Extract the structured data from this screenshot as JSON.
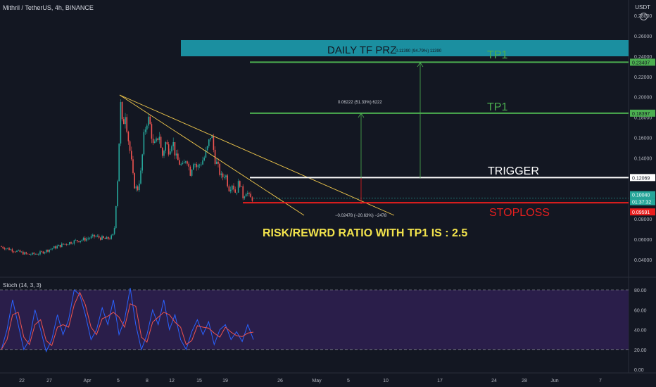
{
  "header": {
    "symbol": "Mithril / TetherUS, 4h, BINANCE",
    "currency": "USDT",
    "settings_icon": "gear-icon"
  },
  "stoch_label": "Stoch (14, 3, 3)",
  "colors": {
    "background": "#131722",
    "up": "#26a69a",
    "down": "#ef5350",
    "prz_box": "#1b8fa0",
    "tp_line": "#4caf50",
    "trigger_line": "#ffffff",
    "stoploss_line": "#e91e1e",
    "trendline": "#f2c94c",
    "stoch_k": "#2962ff",
    "stoch_d": "#ef5350",
    "stoch_band": "#2a1e4a"
  },
  "annotations": {
    "prz_title": "DAILY TF PRZ",
    "prz_measure": "0.11390 (94.79%) 11390",
    "tp1_upper": "TP1",
    "tp1_lower": "TP1",
    "trigger": "TRIGGER",
    "stoploss": "STOPLOSS",
    "measure_mid": "0.06222 (51.33%) 6222",
    "measure_risk": "−0.02478 (−20.63%) −2478",
    "rr_text": "RISK/REWRD RATIO WITH TP1 IS : 2.5"
  },
  "price_tags": {
    "tp1_upper": "0.23407",
    "tp1_lower": "0.18397",
    "trigger": "0.12069",
    "current": "0.10040",
    "countdown": "01:37:32",
    "stoploss": "0.09591"
  },
  "chart_data": [
    {
      "type": "candlestick",
      "title": "Mithril / TetherUS, 4h, BINANCE",
      "ylim": [
        0.025,
        0.295
      ],
      "y_ticks": [
        "0.28000",
        "0.26000",
        "0.24000",
        "0.22000",
        "0.20000",
        "0.18000",
        "0.16000",
        "0.14000",
        "0.12000",
        "0.10000",
        "0.08000",
        "0.06000",
        "0.04000"
      ],
      "x_ticks": [
        "22",
        "27",
        "Apr",
        "5",
        "8",
        "12",
        "15",
        "19",
        "26",
        "May",
        "5",
        "10",
        "17",
        "24",
        "28",
        "Jun",
        "7"
      ],
      "close_path": [
        [
          0,
          0.053
        ],
        [
          20,
          0.049
        ],
        [
          40,
          0.045
        ],
        [
          55,
          0.046
        ],
        [
          70,
          0.05
        ],
        [
          90,
          0.055
        ],
        [
          105,
          0.058
        ],
        [
          120,
          0.06
        ],
        [
          135,
          0.063
        ],
        [
          150,
          0.06
        ],
        [
          158,
          0.062
        ],
        [
          162,
          0.065
        ],
        [
          168,
          0.13
        ],
        [
          171,
          0.195
        ],
        [
          174,
          0.17
        ],
        [
          178,
          0.185
        ],
        [
          182,
          0.16
        ],
        [
          186,
          0.14
        ],
        [
          190,
          0.115
        ],
        [
          195,
          0.108
        ],
        [
          200,
          0.125
        ],
        [
          205,
          0.165
        ],
        [
          210,
          0.18
        ],
        [
          214,
          0.17
        ],
        [
          218,
          0.15
        ],
        [
          222,
          0.155
        ],
        [
          226,
          0.165
        ],
        [
          230,
          0.14
        ],
        [
          235,
          0.155
        ],
        [
          240,
          0.148
        ],
        [
          245,
          0.158
        ],
        [
          250,
          0.14
        ],
        [
          255,
          0.135
        ],
        [
          260,
          0.13
        ],
        [
          265,
          0.142
        ],
        [
          270,
          0.125
        ],
        [
          275,
          0.138
        ],
        [
          280,
          0.13
        ],
        [
          285,
          0.135
        ],
        [
          290,
          0.14
        ],
        [
          295,
          0.15
        ],
        [
          300,
          0.165
        ],
        [
          305,
          0.14
        ],
        [
          310,
          0.13
        ],
        [
          315,
          0.12
        ],
        [
          320,
          0.125
        ],
        [
          325,
          0.11
        ],
        [
          330,
          0.115
        ],
        [
          335,
          0.105
        ],
        [
          340,
          0.118
        ],
        [
          345,
          0.102
        ],
        [
          350,
          0.108
        ],
        [
          355,
          0.1
        ],
        [
          359,
          0.1004
        ]
      ],
      "levels": [
        {
          "name": "TP1",
          "value": 0.23407
        },
        {
          "name": "TP1",
          "value": 0.18397
        },
        {
          "name": "TRIGGER",
          "value": 0.12069
        },
        {
          "name": "STOPLOSS",
          "value": 0.09591
        }
      ],
      "prz_zone": [
        0.24,
        0.262
      ]
    },
    {
      "type": "line",
      "title": "Stoch (14, 3, 3)",
      "ylim": [
        0,
        90
      ],
      "y_ticks": [
        "80.00",
        "60.00",
        "40.00",
        "20.00",
        "0.00"
      ],
      "bands": [
        20,
        80
      ],
      "series": [
        {
          "values": [
            20,
            40,
            70,
            45,
            20,
            30,
            60,
            40,
            18,
            30,
            55,
            35,
            50,
            80,
            75,
            55,
            30,
            40,
            62,
            45,
            70,
            35,
            50,
            82,
            45,
            20,
            35,
            60,
            45,
            70,
            40,
            55,
            30,
            20,
            38,
            50,
            35,
            48,
            25,
            40,
            45,
            30,
            38,
            28,
            45,
            30
          ]
        }
      ]
    }
  ]
}
